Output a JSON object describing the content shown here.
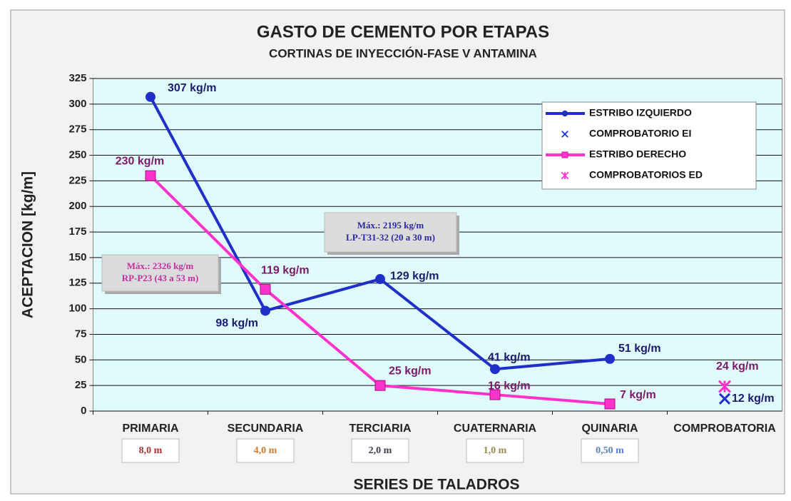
{
  "chart_data": {
    "type": "line",
    "title": "GASTO DE CEMENTO POR ETAPAS",
    "subtitle": "CORTINAS DE INYECCIÓN-FASE V ANTAMINA",
    "y_label": "ACEPTACION [kg/m]",
    "x_label": "SERIES DE TALADROS",
    "categories": [
      "PRIMARIA",
      "SECUNDARIA",
      "TERCIARIA",
      "CUATERNARIA",
      "QUINARIA",
      "COMPROBATORIA"
    ],
    "series": [
      {
        "name": "ESTRIBO IZQUIERDO",
        "color": "#1f2fc8",
        "label_color": "#1a1a70",
        "marker": "circle",
        "line": true,
        "values": [
          307,
          98,
          129,
          41,
          51,
          null
        ],
        "value_labels": [
          "307 kg/m",
          "98 kg/m",
          "129 kg/m",
          "41 kg/m",
          "51 kg/m",
          null
        ]
      },
      {
        "name": "COMPROBATORIO EI",
        "color": "#1f2fc8",
        "label_color": "#1a1a70",
        "marker": "x",
        "line": false,
        "values": [
          null,
          null,
          null,
          null,
          null,
          12
        ],
        "value_labels": [
          null,
          null,
          null,
          null,
          null,
          "12 kg/m"
        ]
      },
      {
        "name": "ESTRIBO DERECHO",
        "color": "#ff33cc",
        "label_color": "#7a1a6a",
        "marker": "square",
        "line": true,
        "values": [
          230,
          119,
          25,
          16,
          7,
          null
        ],
        "value_labels": [
          "230 kg/m",
          "119 kg/m",
          "25 kg/m",
          "16 kg/m",
          "7 kg/m",
          null
        ]
      },
      {
        "name": "COMPROBATORIOS ED",
        "color": "#ff33cc",
        "label_color": "#7a1a6a",
        "marker": "star",
        "line": false,
        "values": [
          null,
          null,
          null,
          null,
          null,
          24
        ],
        "value_labels": [
          null,
          null,
          null,
          null,
          null,
          "24 kg/m"
        ]
      }
    ],
    "ylim": [
      0,
      325
    ],
    "yticks": [
      0,
      25,
      50,
      75,
      100,
      125,
      150,
      175,
      200,
      225,
      250,
      275,
      300,
      325
    ],
    "grid": true,
    "legend": "upper right",
    "annotations": [
      {
        "lines": [
          "Máx.: 2195 kg/m",
          "LP-T31-32 (20 a 30 m)"
        ],
        "color": "#2a2aa0"
      },
      {
        "lines": [
          "Máx.: 2326 kg/m",
          "RP-P23 (43 a 53 m)"
        ],
        "color": "#c030a0"
      }
    ],
    "spacing": [
      {
        "text": "8,0 m",
        "color": "#b03030"
      },
      {
        "text": "4,0 m",
        "color": "#d07a30"
      },
      {
        "text": "2,0 m",
        "color": "#404050"
      },
      {
        "text": "1,0 m",
        "color": "#9a8a50"
      },
      {
        "text": "0,50 m",
        "color": "#5a80c0"
      }
    ]
  }
}
